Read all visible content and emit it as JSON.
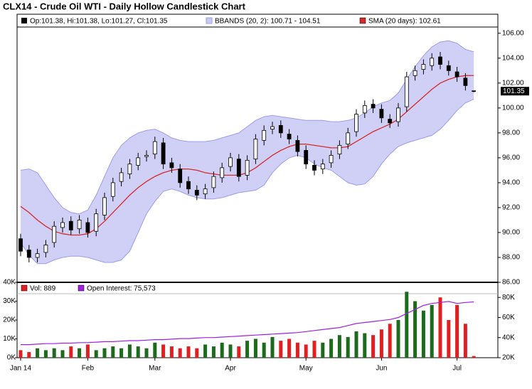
{
  "chart_data": [
    {
      "type": "candlestick",
      "title": "CLX14 - Crude Oil WTI - Daily Hollow Candlestick Chart",
      "ohlc_label": "Op:101.38, Hi:101.38, Lo:101.27, Cl:101.35",
      "last_price_label": "101.35",
      "up_color": "#ffffff",
      "down_color": "#000000",
      "wick_color": "#000000",
      "ylim": [
        86,
        106.5
      ],
      "yticks": [
        {
          "value": 86,
          "label": "86.00"
        },
        {
          "value": 88,
          "label": "88.00"
        },
        {
          "value": 90,
          "label": "90.00"
        },
        {
          "value": 92,
          "label": "92.00"
        },
        {
          "value": 94,
          "label": "94.00"
        },
        {
          "value": 96,
          "label": "96.00"
        },
        {
          "value": 98,
          "label": "98.00"
        },
        {
          "value": 100,
          "label": "100.00"
        },
        {
          "value": 102,
          "label": "102.00"
        },
        {
          "value": 104,
          "label": "104.00"
        },
        {
          "value": 106,
          "label": "106.00"
        }
      ],
      "open": [
        89.5,
        88.6,
        88.0,
        88.4,
        89.2,
        90.4,
        90.9,
        90.3,
        90.8,
        90.1,
        91.4,
        92.9,
        94.1,
        94.7,
        95.4,
        96.1,
        96.3,
        97.2,
        95.6,
        95.1,
        94.1,
        93.4,
        93.1,
        93.6,
        94.4,
        95.3,
        95.9,
        94.6,
        95.9,
        97.4,
        98.3,
        98.6,
        97.9,
        97.4,
        96.6,
        95.4,
        95.1,
        95.6,
        96.3,
        97.1,
        98.1,
        99.6,
        100.3,
        99.9,
        99.1,
        98.9,
        100.1,
        102.6,
        103.1,
        103.4,
        104.1,
        103.4,
        102.9,
        102.4,
        101.38
      ],
      "high": [
        89.9,
        89.0,
        88.7,
        89.4,
        90.9,
        91.2,
        91.3,
        91.4,
        91.2,
        91.9,
        93.2,
        94.4,
        95.2,
        95.9,
        96.4,
        96.6,
        97.7,
        97.6,
        96.0,
        95.5,
        94.5,
        93.8,
        93.9,
        94.9,
        95.6,
        96.4,
        96.3,
        96.2,
        97.9,
        98.6,
        98.9,
        99.0,
        98.3,
        97.8,
        97.0,
        95.8,
        95.9,
        96.6,
        97.4,
        98.4,
        99.9,
        100.6,
        100.7,
        100.3,
        99.5,
        100.4,
        102.9,
        103.4,
        103.9,
        104.4,
        104.5,
        103.8,
        103.3,
        102.8,
        101.38
      ],
      "low": [
        88.1,
        87.6,
        87.6,
        88.0,
        88.8,
        90.0,
        89.8,
        89.9,
        89.6,
        89.7,
        91.0,
        92.5,
        93.7,
        94.3,
        95.0,
        95.7,
        95.9,
        95.1,
        94.8,
        93.6,
        93.1,
        92.6,
        92.7,
        93.2,
        94.0,
        94.9,
        94.1,
        94.2,
        95.5,
        97.0,
        97.9,
        97.6,
        97.1,
        96.1,
        95.1,
        94.6,
        94.7,
        95.2,
        95.9,
        96.7,
        97.7,
        99.2,
        99.6,
        98.8,
        98.4,
        98.5,
        99.7,
        102.2,
        102.7,
        103.0,
        103.1,
        102.6,
        102.1,
        101.4,
        101.27
      ],
      "close": [
        88.5,
        88.0,
        88.3,
        89.0,
        90.5,
        90.8,
        90.2,
        91.0,
        90.0,
        91.5,
        92.8,
        94.0,
        94.8,
        95.5,
        96.0,
        96.2,
        97.3,
        95.5,
        95.2,
        94.0,
        93.5,
        93.0,
        93.5,
        94.5,
        95.2,
        96.0,
        94.5,
        95.8,
        97.5,
        98.2,
        98.5,
        98.0,
        97.5,
        96.5,
        95.5,
        95.0,
        95.5,
        96.2,
        97.0,
        98.0,
        99.5,
        100.2,
        100.0,
        99.2,
        98.8,
        100.0,
        102.5,
        103.0,
        103.5,
        104.0,
        103.5,
        103.0,
        102.5,
        101.8,
        101.35
      ],
      "series": [
        {
          "name": "BBANDS (20, 2): 100.71 - 104.51",
          "color": "#c8c8f4",
          "stroke": "#9c9ce8",
          "upper": [
            95.0,
            95.1,
            94.8,
            93.8,
            92.8,
            92.0,
            91.6,
            91.5,
            91.8,
            93.0,
            94.5,
            96.0,
            97.0,
            97.6,
            98.0,
            98.2,
            98.3,
            98.0,
            97.6,
            97.4,
            97.3,
            97.3,
            97.3,
            97.4,
            97.6,
            97.8,
            98.0,
            98.5,
            99.0,
            99.3,
            99.4,
            99.3,
            99.2,
            99.1,
            99.0,
            99.0,
            99.0,
            98.9,
            98.9,
            99.0,
            99.2,
            99.6,
            100.1,
            100.4,
            100.6,
            101.2,
            102.3,
            103.3,
            104.2,
            104.9,
            105.3,
            105.4,
            105.2,
            104.7,
            104.51
          ],
          "lower": [
            89.2,
            88.2,
            87.5,
            87.5,
            87.8,
            88.0,
            88.1,
            88.1,
            88.0,
            87.8,
            87.6,
            87.6,
            87.8,
            88.5,
            90.0,
            91.5,
            92.5,
            93.3,
            93.5,
            93.3,
            93.0,
            92.8,
            92.7,
            92.7,
            92.8,
            93.0,
            93.2,
            93.3,
            93.4,
            93.8,
            94.8,
            95.5,
            96.0,
            96.2,
            96.0,
            95.5,
            95.2,
            95.0,
            94.5,
            94.0,
            93.8,
            93.9,
            94.5,
            95.5,
            96.3,
            96.9,
            97.2,
            97.4,
            97.6,
            97.8,
            98.3,
            99.0,
            99.8,
            100.4,
            100.71
          ]
        },
        {
          "name": "SMA (20 days): 102.61",
          "color": "#d42a2a",
          "values": [
            92.1,
            91.6,
            91.0,
            90.5,
            90.1,
            89.9,
            89.8,
            89.8,
            89.9,
            90.3,
            90.9,
            91.6,
            92.3,
            93.0,
            93.6,
            94.1,
            94.5,
            94.8,
            95.0,
            95.1,
            95.1,
            95.0,
            94.8,
            94.7,
            94.6,
            94.6,
            94.6,
            94.8,
            95.2,
            95.7,
            96.2,
            96.6,
            96.9,
            97.1,
            97.1,
            97.0,
            96.9,
            96.8,
            96.8,
            96.9,
            97.3,
            97.7,
            98.1,
            98.4,
            98.7,
            99.1,
            99.7,
            100.3,
            100.9,
            101.5,
            102.0,
            102.3,
            102.5,
            102.6,
            102.61
          ]
        }
      ]
    },
    {
      "type": "bar",
      "categories": [
        "Jan 14",
        null,
        null,
        null,
        null,
        null,
        null,
        null,
        "Feb",
        null,
        null,
        null,
        null,
        null,
        null,
        null,
        "Mar",
        null,
        null,
        null,
        null,
        null,
        null,
        null,
        null,
        "Apr",
        null,
        null,
        null,
        null,
        null,
        null,
        null,
        null,
        "May",
        null,
        null,
        null,
        null,
        null,
        null,
        null,
        null,
        "Jun",
        null,
        null,
        null,
        null,
        null,
        null,
        null,
        null,
        "Jul",
        null,
        null
      ],
      "ylim": [
        0,
        40000
      ],
      "yticks": [
        {
          "value": 0,
          "label": "0K"
        },
        {
          "value": 10000,
          "label": "10K"
        },
        {
          "value": 20000,
          "label": "20K"
        },
        {
          "value": 30000,
          "label": "30K"
        },
        {
          "value": 40000,
          "label": "40K"
        }
      ],
      "y2lim": [
        20000,
        95000
      ],
      "y2ticks": [
        {
          "value": 20000,
          "label": "20K"
        },
        {
          "value": 40000,
          "label": "40K"
        },
        {
          "value": 60000,
          "label": "60K"
        },
        {
          "value": 80000,
          "label": "80K"
        }
      ],
      "up_color": "#1c6a1c",
      "down_color": "#e02020",
      "series": [
        {
          "name": "Vol: 889",
          "color": "#e02020",
          "values": [
            4000,
            3000,
            5000,
            4000,
            5000,
            4000,
            6000,
            5000,
            7000,
            4000,
            5000,
            6000,
            5000,
            7000,
            6000,
            5000,
            8000,
            7000,
            6000,
            5000,
            6000,
            5000,
            7000,
            6000,
            8000,
            7000,
            6000,
            9000,
            10000,
            8000,
            11000,
            9000,
            10000,
            8000,
            7000,
            9000,
            8000,
            10000,
            12000,
            11000,
            14000,
            13000,
            12000,
            15000,
            18000,
            20000,
            35000,
            30000,
            25000,
            28000,
            32000,
            20000,
            28000,
            18000,
            889
          ]
        },
        {
          "name": "Open Interest: 75,573",
          "color": "#a020e0",
          "axis": "y2",
          "values": [
            33000,
            33000,
            33500,
            34000,
            34000,
            34500,
            34500,
            35000,
            35000,
            35500,
            36000,
            36000,
            36500,
            37000,
            37000,
            37500,
            38000,
            38000,
            38500,
            39000,
            39000,
            39500,
            40000,
            40000,
            40500,
            41000,
            41500,
            42000,
            42500,
            43000,
            43500,
            44000,
            44500,
            45000,
            46000,
            47000,
            48000,
            49000,
            50000,
            52000,
            54000,
            55000,
            56000,
            57000,
            58000,
            60000,
            64000,
            68000,
            72000,
            74000,
            75000,
            76000,
            74000,
            75000,
            75573
          ]
        }
      ]
    }
  ]
}
